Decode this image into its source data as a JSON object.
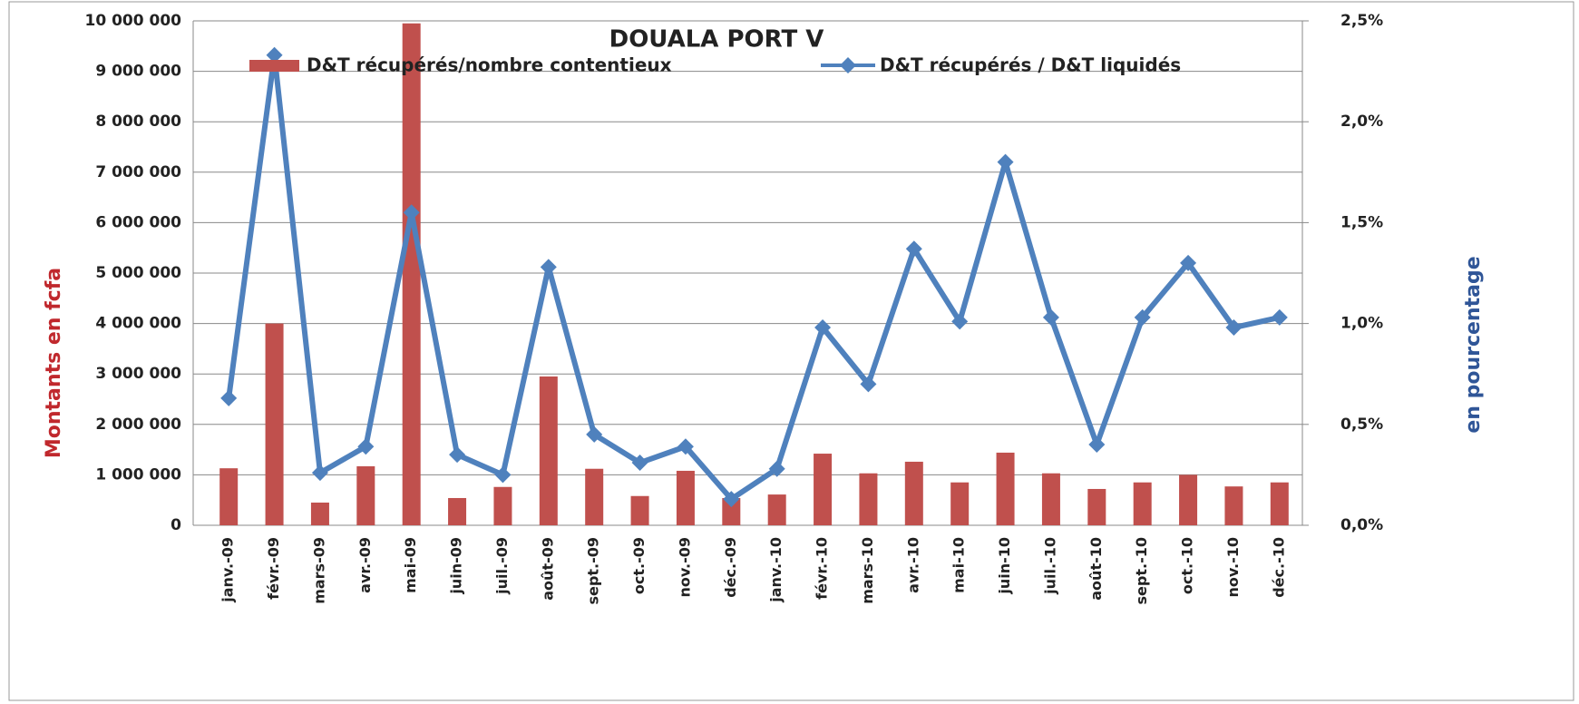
{
  "chart_data": {
    "type": "bar_line",
    "title": "DOUALA PORT V",
    "y_label": "Montants en fcfa",
    "y2_label": "en pourcentage",
    "categories": [
      "janv.-09",
      "févr.-09",
      "mars-09",
      "avr.-09",
      "mai-09",
      "juin-09",
      "juil.-09",
      "août-09",
      "sept.-09",
      "oct.-09",
      "nov.-09",
      "déc.-09",
      "janv.-10",
      "févr.-10",
      "mars-10",
      "avr.-10",
      "mai-10",
      "juin-10",
      "juil.-10",
      "août-10",
      "sept.-10",
      "oct.-10",
      "nov.-10",
      "déc.-10"
    ],
    "series": [
      {
        "name": "D&T récupérés/nombre contentieux",
        "color": "#c0504d",
        "kind": "bar",
        "values": [
          1130000,
          4000000,
          450000,
          1170000,
          9950000,
          540000,
          760000,
          2950000,
          1120000,
          580000,
          1080000,
          540000,
          610000,
          1420000,
          1030000,
          1260000,
          850000,
          1440000,
          1030000,
          720000,
          850000,
          1000000,
          770000,
          850000
        ]
      },
      {
        "name": "D&T récupérés / D&T liquidés",
        "color": "#4f81bd",
        "kind": "line",
        "axis": "y2",
        "values": [
          0.63,
          2.33,
          0.26,
          0.39,
          1.55,
          0.35,
          0.25,
          1.28,
          0.45,
          0.31,
          0.39,
          0.13,
          0.28,
          0.98,
          0.7,
          1.37,
          1.01,
          1.8,
          1.03,
          0.4,
          1.03,
          1.3,
          0.98,
          1.03
        ]
      }
    ],
    "ylim": [
      0,
      10000000
    ],
    "yticks": [
      0,
      {
        "value": 1000000,
        "label": "1 000 000"
      },
      {
        "value": 2000000,
        "label": "2 000 000"
      },
      {
        "value": 3000000,
        "label": "3 000 000"
      },
      {
        "value": 4000000,
        "label": "4 000 000"
      },
      {
        "value": 5000000,
        "label": "5 000 000"
      },
      {
        "value": 6000000,
        "label": "6 000 000"
      },
      {
        "value": 7000000,
        "label": "7 000 000"
      },
      {
        "value": 8000000,
        "label": "8 000 000"
      },
      {
        "value": 9000000,
        "label": "9 000 000"
      },
      {
        "value": 10000000,
        "label": "10 000 000"
      }
    ],
    "y2lim": [
      0,
      2.5
    ],
    "y2ticks": [
      {
        "value": 0,
        "label": "0,0%"
      },
      {
        "value": 0.5,
        "label": "0,5%"
      },
      {
        "value": 1,
        "label": "1,0%"
      },
      {
        "value": 1.5,
        "label": "1,5%"
      },
      {
        "value": 2,
        "label": "2,0%"
      },
      {
        "value": 2.5,
        "label": "2,5%"
      }
    ],
    "grid": true
  }
}
